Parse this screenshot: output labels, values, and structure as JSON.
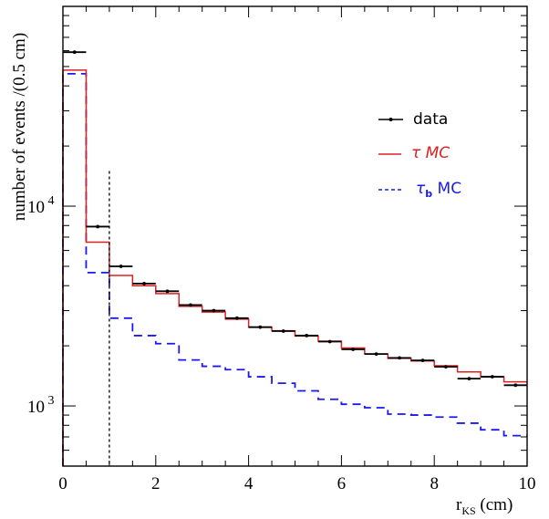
{
  "chart_data": {
    "type": "histogram-step",
    "xlabel": "r",
    "xlabel_sub": "KS",
    "xlabel_unit": " (cm)",
    "ylabel": "number of events /(0.5 cm)",
    "y_scale": "log",
    "xlim": [
      0,
      10
    ],
    "ylim": [
      500,
      100000
    ],
    "x_ticks": [
      0,
      2,
      4,
      6,
      8,
      10
    ],
    "y_tick_labels": [
      {
        "value": 1000,
        "base": "10",
        "exp": "3"
      },
      {
        "value": 10000,
        "base": "10",
        "exp": "4"
      }
    ],
    "cut_line_x": 1.0,
    "bin_edges": [
      0,
      0.5,
      1.0,
      1.5,
      2.0,
      2.5,
      3.0,
      3.5,
      4.0,
      4.5,
      5.0,
      5.5,
      6.0,
      6.5,
      7.0,
      7.5,
      8.0,
      8.5,
      9.0,
      9.5,
      10.0
    ],
    "series": [
      {
        "name": "data",
        "style": "points",
        "color": "#000000",
        "values": [
          59000,
          7900,
          5000,
          4100,
          3750,
          3200,
          3000,
          2750,
          2480,
          2370,
          2250,
          2100,
          1920,
          1820,
          1740,
          1690,
          1570,
          1370,
          1400,
          1270
        ]
      },
      {
        "name": "τ MC",
        "style": "solid",
        "color": "#e02020",
        "values": [
          48000,
          6600,
          4500,
          4000,
          3650,
          3150,
          2950,
          2720,
          2480,
          2380,
          2240,
          2110,
          1950,
          1820,
          1730,
          1680,
          1590,
          1480,
          1400,
          1320
        ]
      },
      {
        "name": "τ",
        "name_sub": "b",
        "name_suffix": " MC",
        "style": "dashed",
        "color": "#1a1aee",
        "values": [
          46000,
          4650,
          2750,
          2250,
          2050,
          1700,
          1580,
          1520,
          1400,
          1300,
          1190,
          1080,
          1020,
          980,
          910,
          900,
          880,
          820,
          760,
          710
        ]
      }
    ]
  }
}
